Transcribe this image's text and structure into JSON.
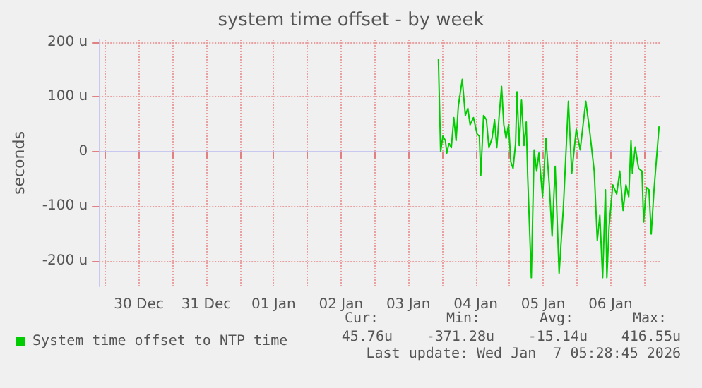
{
  "chart_data": {
    "type": "line",
    "title": "system time offset - by week",
    "ylabel": "seconds",
    "xlim": [
      "2025-12-29T21:50",
      "2026-01-07T06:00"
    ],
    "xticks": [
      {
        "value": "2025-12-30T00:00",
        "label": null
      },
      {
        "value": "2025-12-30T12:00",
        "label": "30 Dec"
      },
      {
        "value": "2025-12-31T00:00",
        "label": null
      },
      {
        "value": "2025-12-31T12:00",
        "label": "31 Dec"
      },
      {
        "value": "2026-01-01T00:00",
        "label": null
      },
      {
        "value": "2026-01-01T12:00",
        "label": "01 Jan"
      },
      {
        "value": "2026-01-02T00:00",
        "label": null
      },
      {
        "value": "2026-01-02T12:00",
        "label": "02 Jan"
      },
      {
        "value": "2026-01-03T00:00",
        "label": null
      },
      {
        "value": "2026-01-03T12:00",
        "label": "03 Jan"
      },
      {
        "value": "2026-01-04T00:00",
        "label": null
      },
      {
        "value": "2026-01-04T12:00",
        "label": "04 Jan"
      },
      {
        "value": "2026-01-05T00:00",
        "label": null
      },
      {
        "value": "2026-01-05T12:00",
        "label": "05 Jan"
      },
      {
        "value": "2026-01-06T00:00",
        "label": null
      },
      {
        "value": "2026-01-06T12:00",
        "label": "06 Jan"
      },
      {
        "value": "2026-01-07T00:00",
        "label": null
      }
    ],
    "ylim": [
      -247,
      205
    ],
    "yticks": [
      {
        "value": -200,
        "label": "-200 u"
      },
      {
        "value": -100,
        "label": "-100 u"
      },
      0,
      {
        "value": 100,
        "label": "100 u"
      },
      {
        "value": 200,
        "label": "200 u"
      }
    ],
    "grid": true,
    "legend": "bottom left",
    "series": [
      {
        "name": "System time offset to NTP time",
        "color": "#00cc00",
        "x": [
          "2026-01-03T22:42",
          "2026-01-03T23:30",
          "2026-01-04T00:18",
          "2026-01-04T01:12",
          "2026-01-04T01:42",
          "2026-01-04T02:30",
          "2026-01-04T03:18",
          "2026-01-04T04:12",
          "2026-01-04T05:00",
          "2026-01-04T05:48",
          "2026-01-04T07:12",
          "2026-01-04T08:18",
          "2026-01-04T09:12",
          "2026-01-04T10:00",
          "2026-01-04T11:12",
          "2026-01-04T12:30",
          "2026-01-04T13:18",
          "2026-01-04T13:48",
          "2026-01-04T14:48",
          "2026-01-04T15:48",
          "2026-01-04T16:42",
          "2026-01-04T17:48",
          "2026-01-04T18:42",
          "2026-01-04T19:30",
          "2026-01-04T20:18",
          "2026-01-04T21:12",
          "2026-01-04T22:00",
          "2026-01-04T22:48",
          "2026-01-04T23:42",
          "2026-01-05T00:30",
          "2026-01-05T01:18",
          "2026-01-05T02:12",
          "2026-01-05T02:42",
          "2026-01-05T03:30",
          "2026-01-05T04:18",
          "2026-01-05T05:12",
          "2026-01-05T06:00",
          "2026-01-05T06:30",
          "2026-01-05T07:48",
          "2026-01-05T08:48",
          "2026-01-05T09:42",
          "2026-01-05T10:30",
          "2026-01-05T11:48",
          "2026-01-05T13:00",
          "2026-01-05T14:12",
          "2026-01-05T15:12",
          "2026-01-05T16:18",
          "2026-01-05T17:42",
          "2026-01-05T19:12",
          "2026-01-05T21:00",
          "2026-01-05T22:12",
          "2026-01-05T23:48",
          "2026-01-06T01:12",
          "2026-01-06T03:12",
          "2026-01-06T04:30",
          "2026-01-06T06:12",
          "2026-01-06T07:18",
          "2026-01-06T08:12",
          "2026-01-06T09:12",
          "2026-01-06T10:12",
          "2026-01-06T10:42",
          "2026-01-06T11:30",
          "2026-01-06T12:48",
          "2026-01-06T14:12",
          "2026-01-06T15:18",
          "2026-01-06T16:30",
          "2026-01-06T17:30",
          "2026-01-06T18:30",
          "2026-01-06T19:18",
          "2026-01-06T19:48",
          "2026-01-06T20:48",
          "2026-01-06T22:00",
          "2026-01-06T23:12",
          "2026-01-06T23:48",
          "2026-01-07T00:48",
          "2026-01-07T01:42",
          "2026-01-07T02:30",
          "2026-01-07T03:30",
          "2026-01-07T05:18"
        ],
        "values": [
          170,
          0,
          28,
          20,
          -3,
          15,
          7,
          62,
          20,
          83,
          132,
          66,
          79,
          49,
          62,
          32,
          28,
          -44,
          66,
          58,
          7,
          24,
          58,
          7,
          62,
          119,
          49,
          24,
          49,
          -19,
          -31,
          15,
          109,
          11,
          94,
          11,
          54,
          -44,
          -231,
          3,
          -36,
          -3,
          -83,
          24,
          -61,
          -155,
          -27,
          -223,
          -104,
          92,
          -40,
          41,
          3,
          92,
          41,
          -36,
          -163,
          -117,
          -231,
          -70,
          -231,
          -138,
          -61,
          -78,
          -36,
          -108,
          -61,
          -83,
          20,
          -40,
          8,
          -31,
          -36,
          -129,
          -66,
          -70,
          -151,
          -70,
          46
        ]
      }
    ],
    "annotations": [
      "Cur:",
      "Min:",
      "Avg:",
      "Max:",
      "45.76u",
      "-371.28u",
      "-15.14u",
      "416.55u",
      "Last update: Wed Jan  7 05:28:45 2026"
    ]
  }
}
